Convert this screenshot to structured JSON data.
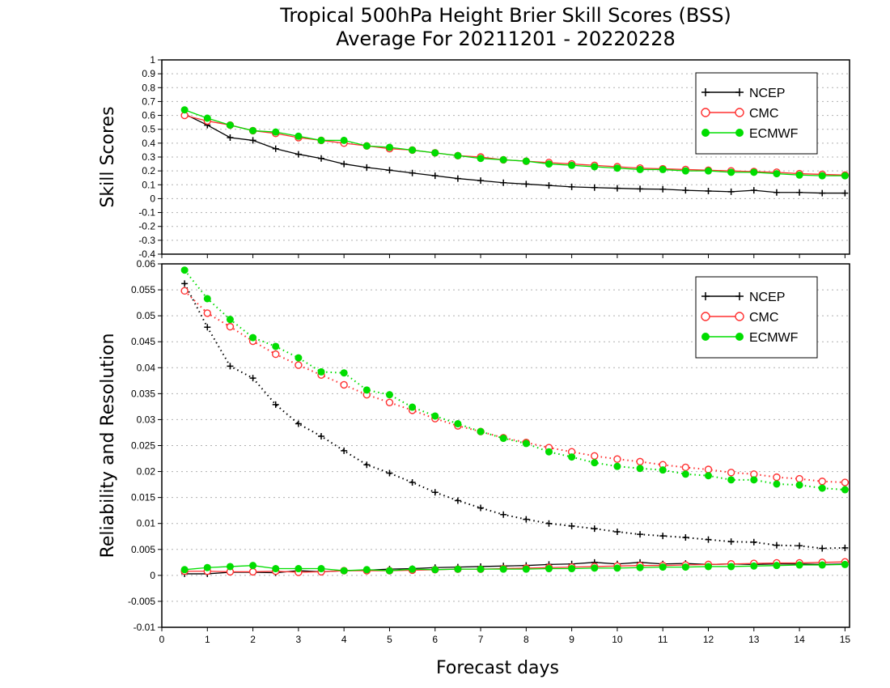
{
  "title_line1": "Tropical 500hPa Height Brier Skill Scores (BSS)",
  "title_line2": "Average For 20211201 - 20220228",
  "colors": {
    "NCEP": "#000000",
    "CMC": "#ff3030",
    "ECMWF": "#00dd00",
    "grid": "#b0b0b0"
  },
  "chart_data": [
    {
      "type": "line",
      "name": "top-panel",
      "ylabel": "Skill Scores",
      "xlabel": "",
      "xlim": [
        0,
        15.1
      ],
      "ylim": [
        -0.4,
        1
      ],
      "yticks": [
        -0.4,
        -0.3,
        -0.2,
        -0.1,
        0,
        0.1,
        0.2,
        0.3,
        0.4,
        0.5,
        0.6,
        0.7,
        0.8,
        0.9,
        1
      ],
      "ytick_labels": [
        "-0.4",
        "-0.3",
        "-0.2",
        "-0.1",
        "0",
        "0.1",
        "0.2",
        "0.3",
        "0.4",
        "0.5",
        "0.6",
        "0.7",
        "0.8",
        "0.9",
        "1"
      ],
      "grid": true,
      "legend": "top-right",
      "x": [
        0.5,
        1,
        1.5,
        2,
        2.5,
        3,
        3.5,
        4,
        4.5,
        5,
        5.5,
        6,
        6.5,
        7,
        7.5,
        8,
        8.5,
        9,
        9.5,
        10,
        10.5,
        11,
        11.5,
        12,
        12.5,
        13,
        13.5,
        14,
        14.5,
        15
      ],
      "series": [
        {
          "name": "NCEP",
          "color": "#000000",
          "marker": "plus",
          "dash": "solid",
          "values": [
            0.61,
            0.53,
            0.44,
            0.42,
            0.36,
            0.32,
            0.29,
            0.25,
            0.225,
            0.205,
            0.185,
            0.165,
            0.145,
            0.13,
            0.115,
            0.105,
            0.095,
            0.085,
            0.08,
            0.075,
            0.07,
            0.068,
            0.06,
            0.055,
            0.05,
            0.06,
            0.045,
            0.045,
            0.04,
            0.04
          ]
        },
        {
          "name": "CMC",
          "color": "#ff3030",
          "marker": "open-circle",
          "dash": "solid",
          "values": [
            0.6,
            0.56,
            0.53,
            0.49,
            0.47,
            0.44,
            0.42,
            0.4,
            0.38,
            0.36,
            0.35,
            0.33,
            0.31,
            0.3,
            0.28,
            0.27,
            0.26,
            0.25,
            0.24,
            0.23,
            0.22,
            0.215,
            0.21,
            0.205,
            0.2,
            0.195,
            0.19,
            0.18,
            0.175,
            0.17
          ]
        },
        {
          "name": "ECMWF",
          "color": "#00dd00",
          "marker": "filled-circle",
          "dash": "solid",
          "values": [
            0.64,
            0.58,
            0.53,
            0.49,
            0.48,
            0.45,
            0.42,
            0.42,
            0.38,
            0.37,
            0.35,
            0.33,
            0.31,
            0.29,
            0.28,
            0.27,
            0.25,
            0.24,
            0.23,
            0.22,
            0.21,
            0.21,
            0.2,
            0.2,
            0.19,
            0.19,
            0.18,
            0.17,
            0.165,
            0.165
          ]
        }
      ]
    },
    {
      "type": "line",
      "name": "bottom-panel",
      "ylabel": "Reliability and Resolution",
      "xlabel": "Forecast days",
      "xlim": [
        0,
        15.1
      ],
      "ylim": [
        -0.01,
        0.06
      ],
      "yticks": [
        -0.01,
        -0.005,
        0,
        0.005,
        0.01,
        0.015,
        0.02,
        0.025,
        0.03,
        0.035,
        0.04,
        0.045,
        0.05,
        0.055,
        0.06
      ],
      "ytick_labels": [
        "-0.01",
        "-0.005",
        "0",
        "0.005",
        "0.01",
        "0.015",
        "0.02",
        "0.025",
        "0.03",
        "0.035",
        "0.04",
        "0.045",
        "0.05",
        "0.055",
        "0.06"
      ],
      "xticks": [
        0,
        1,
        2,
        3,
        4,
        5,
        6,
        7,
        8,
        9,
        10,
        11,
        12,
        13,
        14,
        15
      ],
      "xtick_labels": [
        "0",
        "1",
        "2",
        "3",
        "4",
        "5",
        "6",
        "7",
        "8",
        "9",
        "10",
        "11",
        "12",
        "13",
        "14",
        "15"
      ],
      "grid": true,
      "legend": "top-right",
      "x": [
        0.5,
        1,
        1.5,
        2,
        2.5,
        3,
        3.5,
        4,
        4.5,
        5,
        5.5,
        6,
        6.5,
        7,
        7.5,
        8,
        8.5,
        9,
        9.5,
        10,
        10.5,
        11,
        11.5,
        12,
        12.5,
        13,
        13.5,
        14,
        14.5,
        15
      ],
      "series": [
        {
          "name": "NCEP",
          "color": "#000000",
          "marker": "plus",
          "dash": "dotted",
          "values": [
            0.0562,
            0.0478,
            0.0403,
            0.038,
            0.0329,
            0.0292,
            0.0268,
            0.024,
            0.0213,
            0.0197,
            0.0179,
            0.016,
            0.0144,
            0.013,
            0.0117,
            0.0108,
            0.01,
            0.0095,
            0.009,
            0.0084,
            0.0079,
            0.0076,
            0.0073,
            0.0069,
            0.0065,
            0.0064,
            0.0058,
            0.0057,
            0.0052,
            0.0053
          ]
        },
        {
          "name": "CMC",
          "color": "#ff3030",
          "marker": "open-circle",
          "dash": "dotted",
          "values": [
            0.0548,
            0.0505,
            0.0479,
            0.0451,
            0.0426,
            0.0405,
            0.0386,
            0.0367,
            0.0348,
            0.0333,
            0.0318,
            0.0302,
            0.0288,
            0.0277,
            0.0265,
            0.0256,
            0.0246,
            0.0238,
            0.023,
            0.0224,
            0.0219,
            0.0213,
            0.0208,
            0.0204,
            0.0198,
            0.0195,
            0.0189,
            0.0186,
            0.0181,
            0.0179
          ]
        },
        {
          "name": "ECMWF",
          "color": "#00dd00",
          "marker": "filled-circle",
          "dash": "dotted",
          "values": [
            0.0588,
            0.0533,
            0.0493,
            0.0458,
            0.0441,
            0.0419,
            0.0392,
            0.039,
            0.0357,
            0.0348,
            0.0324,
            0.0307,
            0.0292,
            0.0277,
            0.0264,
            0.0254,
            0.0238,
            0.0228,
            0.0217,
            0.021,
            0.0206,
            0.0203,
            0.0195,
            0.0192,
            0.0184,
            0.0184,
            0.0176,
            0.0174,
            0.0168,
            0.0165
          ]
        },
        {
          "name": "NCEP",
          "color": "#000000",
          "marker": "plus",
          "dash": "solid",
          "legend": false,
          "values": [
            0.0003,
            0.0003,
            0.0006,
            0.0006,
            0.0005,
            0.0009,
            0.0007,
            0.0009,
            0.001,
            0.0012,
            0.0013,
            0.0015,
            0.0016,
            0.0017,
            0.0018,
            0.0019,
            0.0021,
            0.0022,
            0.0025,
            0.0022,
            0.0025,
            0.0022,
            0.0023,
            0.0021,
            0.0022,
            0.0021,
            0.0022,
            0.0022,
            0.0021,
            0.0022
          ]
        },
        {
          "name": "CMC",
          "color": "#ff3030",
          "marker": "open-circle",
          "dash": "solid",
          "legend": false,
          "values": [
            0.0008,
            0.0008,
            0.0007,
            0.0007,
            0.0008,
            0.0006,
            0.0007,
            0.0009,
            0.0009,
            0.0009,
            0.001,
            0.0011,
            0.0012,
            0.0012,
            0.0013,
            0.0014,
            0.0015,
            0.0016,
            0.0017,
            0.0018,
            0.0019,
            0.0019,
            0.002,
            0.0021,
            0.0022,
            0.0023,
            0.0024,
            0.0024,
            0.0025,
            0.0026
          ]
        },
        {
          "name": "ECMWF",
          "color": "#00dd00",
          "marker": "filled-circle",
          "dash": "solid",
          "legend": false,
          "values": [
            0.0011,
            0.0015,
            0.0017,
            0.0019,
            0.0013,
            0.0013,
            0.0013,
            0.0009,
            0.0011,
            0.0009,
            0.0012,
            0.0011,
            0.0012,
            0.0012,
            0.0012,
            0.0012,
            0.0013,
            0.0013,
            0.0014,
            0.0014,
            0.0015,
            0.0016,
            0.0016,
            0.0017,
            0.0017,
            0.0018,
            0.0019,
            0.002,
            0.002,
            0.0021
          ]
        }
      ]
    }
  ]
}
